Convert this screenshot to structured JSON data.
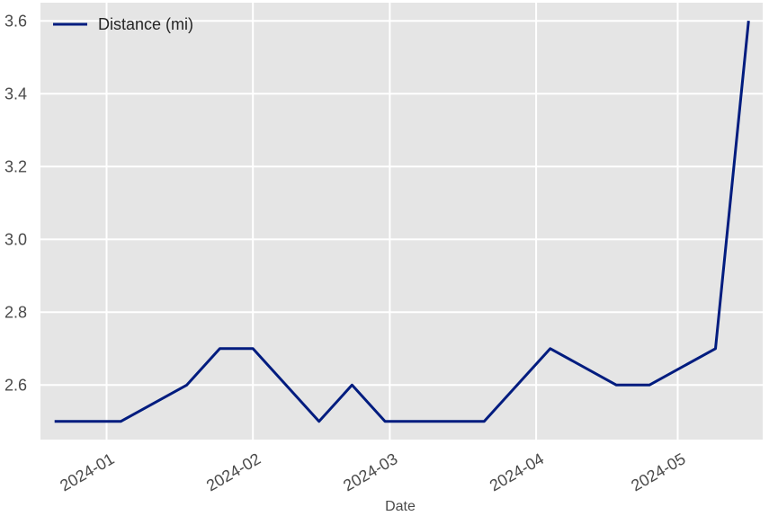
{
  "chart_data": {
    "type": "line",
    "title": "",
    "xlabel": "Date",
    "ylabel": "",
    "grid": true,
    "legend_position": "top-left",
    "background_color": "#e5e5e5",
    "grid_color": "#ffffff",
    "x_tick_labels": [
      {
        "date": "2024-01-01",
        "label": "2024-01"
      },
      {
        "date": "2024-02-01",
        "label": "2024-02"
      },
      {
        "date": "2024-03-01",
        "label": "2024-03"
      },
      {
        "date": "2024-04-01",
        "label": "2024-04"
      },
      {
        "date": "2024-05-01",
        "label": "2024-05"
      }
    ],
    "y_ticks": [
      2.6,
      2.8,
      3.0,
      3.2,
      3.4,
      3.6
    ],
    "y_tick_labels": [
      "2.6",
      "2.8",
      "3.0",
      "3.2",
      "3.4",
      "3.6"
    ],
    "xlim": [
      "2023-12-18",
      "2024-05-19"
    ],
    "ylim": [
      2.45,
      3.65
    ],
    "series": [
      {
        "name": "Distance (mi)",
        "color": "#001c7f",
        "points": [
          {
            "x": "2023-12-21",
            "y": 2.5
          },
          {
            "x": "2024-01-04",
            "y": 2.5
          },
          {
            "x": "2024-01-18",
            "y": 2.6
          },
          {
            "x": "2024-01-25",
            "y": 2.7
          },
          {
            "x": "2024-02-01",
            "y": 2.7
          },
          {
            "x": "2024-02-15",
            "y": 2.5
          },
          {
            "x": "2024-02-22",
            "y": 2.6
          },
          {
            "x": "2024-02-29",
            "y": 2.5
          },
          {
            "x": "2024-03-21",
            "y": 2.5
          },
          {
            "x": "2024-04-04",
            "y": 2.7
          },
          {
            "x": "2024-04-18",
            "y": 2.6
          },
          {
            "x": "2024-04-25",
            "y": 2.6
          },
          {
            "x": "2024-05-09",
            "y": 2.7
          },
          {
            "x": "2024-05-16",
            "y": 3.6
          }
        ]
      }
    ]
  }
}
